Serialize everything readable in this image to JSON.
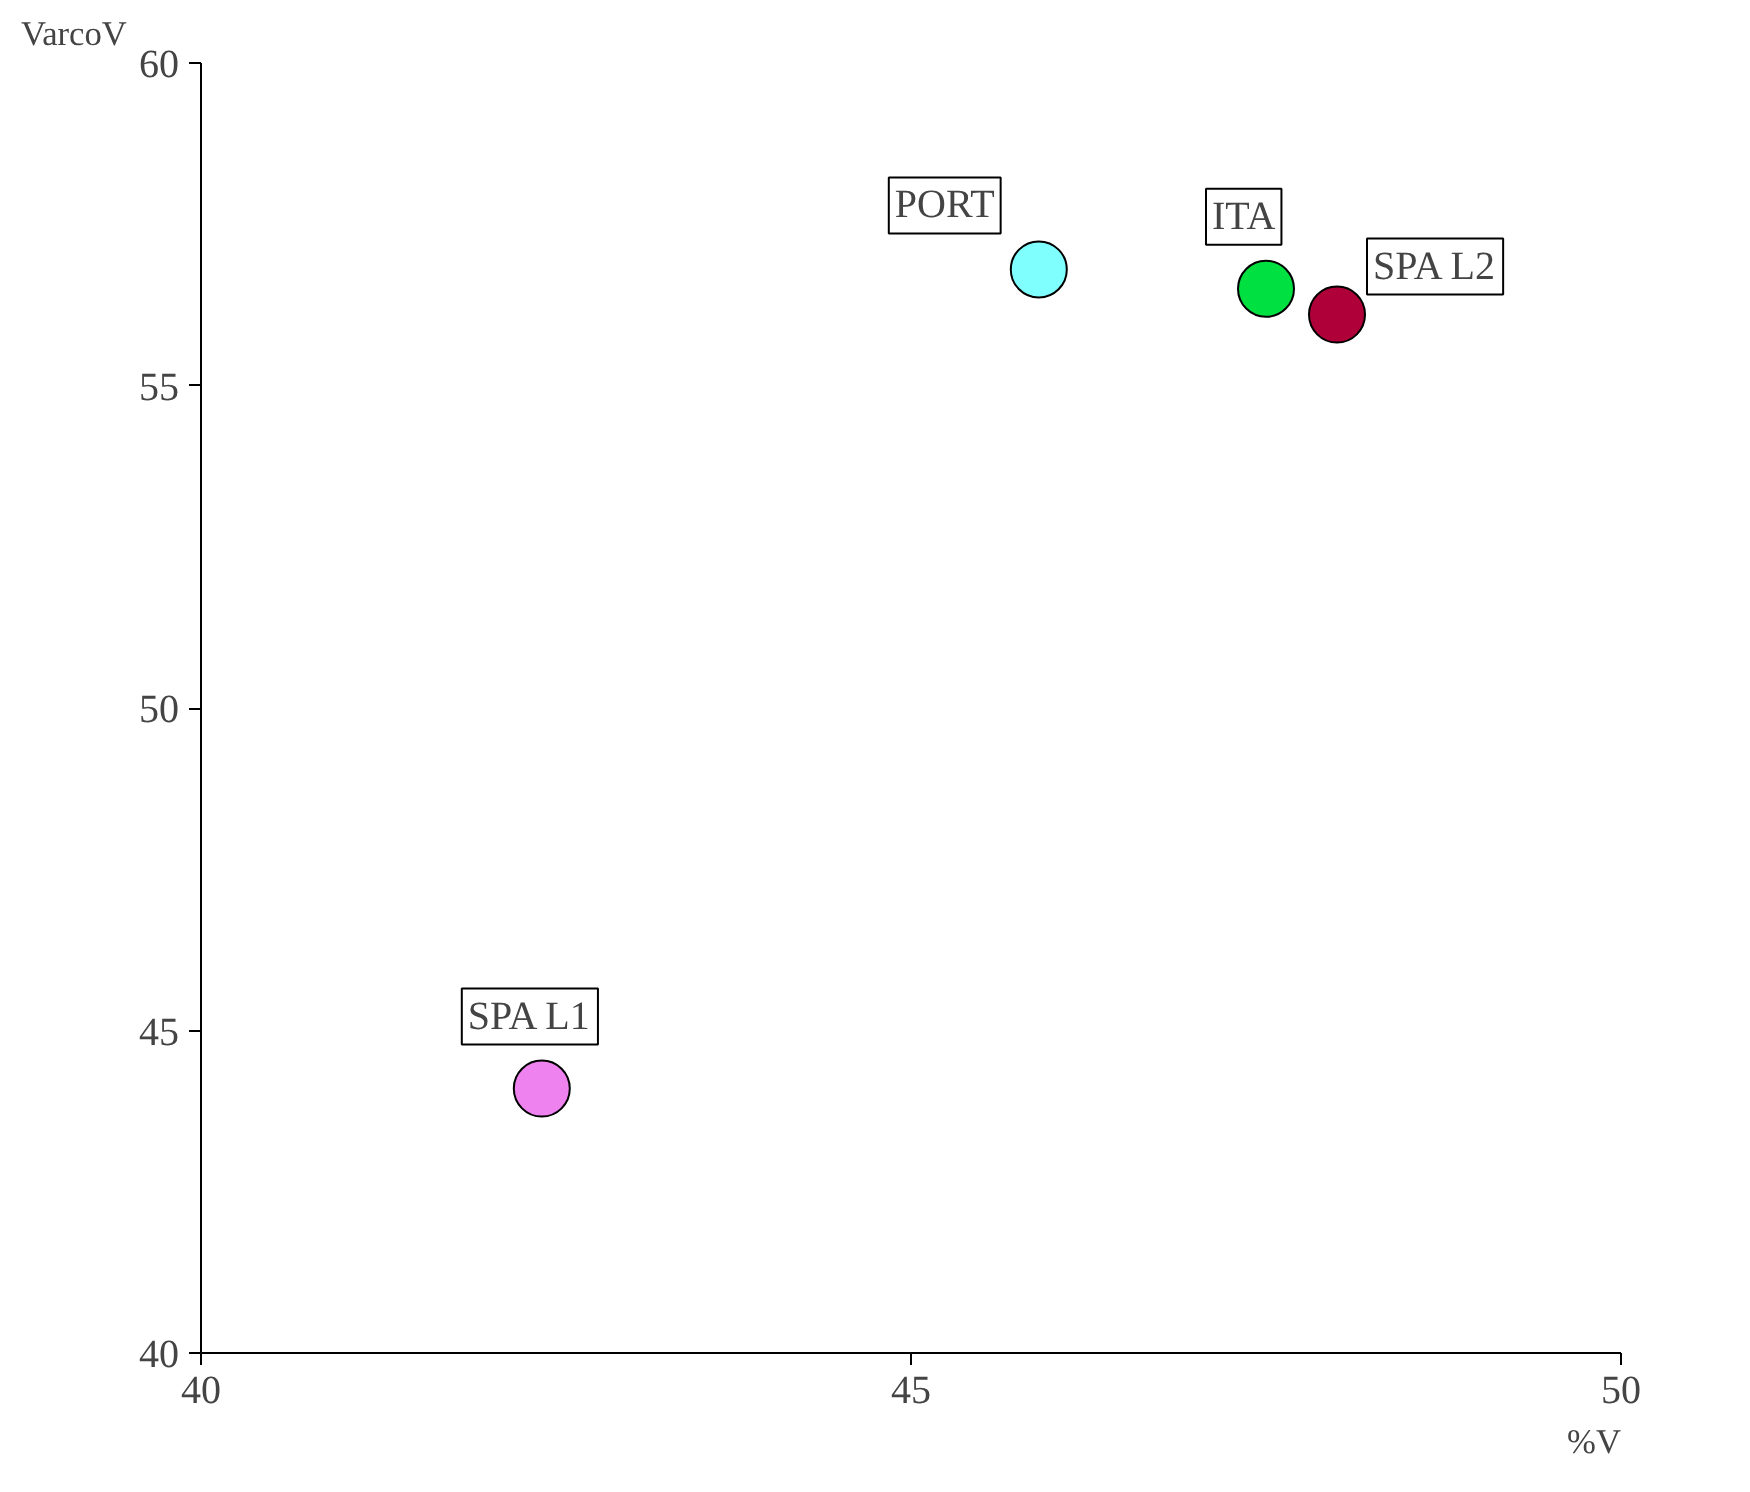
{
  "chart_data": {
    "type": "scatter",
    "xlabel": "%V",
    "ylabel": "VarcoV",
    "xlim": [
      40,
      50
    ],
    "ylim": [
      40,
      60
    ],
    "xticks": [
      40,
      45,
      50
    ],
    "yticks": [
      40,
      45,
      50,
      55,
      60
    ],
    "marker": "circle",
    "series": [
      {
        "name": "PORT",
        "color": "#80ffff",
        "x": [
          45.9
        ],
        "values": [
          56.8
        ]
      },
      {
        "name": "ITA",
        "color": "#00e040",
        "x": [
          47.5
        ],
        "values": [
          56.5
        ]
      },
      {
        "name": "SPA L2",
        "color": "#b0003a",
        "x": [
          48.0
        ],
        "values": [
          56.1
        ]
      },
      {
        "name": "SPA L1",
        "color": "#ee82ee",
        "x": [
          42.4
        ],
        "values": [
          44.1
        ]
      }
    ]
  }
}
